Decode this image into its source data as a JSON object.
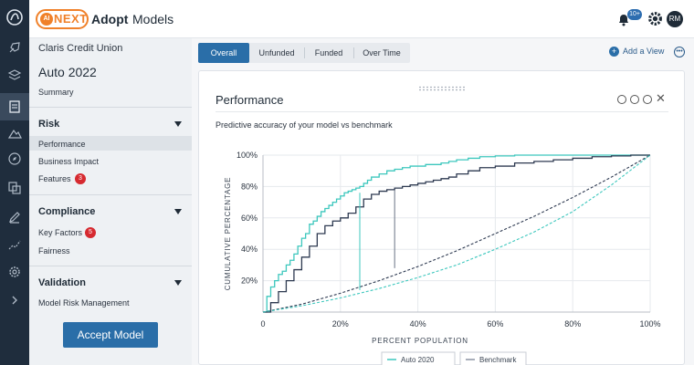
{
  "topbar": {
    "brand_ai": "AI",
    "brand_name": "NEXT",
    "app_title": "Adopt",
    "app_section": "Models",
    "notification_count": "10+",
    "user_initials": "RM"
  },
  "sidebar": {
    "org": "Claris Credit Union",
    "model": "Auto 2022",
    "summary": "Summary",
    "sections": {
      "risk": {
        "title": "Risk",
        "items": [
          "Performance",
          "Business Impact",
          "Features"
        ],
        "features_badge": "3"
      },
      "compliance": {
        "title": "Compliance",
        "items": [
          "Key Factors",
          "Fairness"
        ],
        "key_factors_badge": "5"
      },
      "validation": {
        "title": "Validation",
        "items": [
          "Model Risk Management"
        ]
      }
    },
    "accept_label": "Accept Model"
  },
  "main": {
    "tabs": [
      "Overall",
      "Unfunded",
      "Funded",
      "Over Time"
    ],
    "active_tab": "Overall",
    "add_view": "Add a View",
    "card": {
      "title": "Performance",
      "subtitle": "Predictive accuracy of your model vs benchmark"
    }
  },
  "colors": {
    "accent": "#2a6ea8",
    "teal_series": "#3cc7bd",
    "navy_series": "#2d3950",
    "badge": "#d62a30",
    "brand_orange": "#f0812a"
  },
  "chart_data": {
    "type": "line",
    "xlabel": "PERCENT POPULATION",
    "ylabel": "CUMULATIVE PERCENTAGE",
    "xlim": [
      0,
      100
    ],
    "ylim": [
      0,
      100
    ],
    "x_ticks": [
      "0",
      "20%",
      "40%",
      "60%",
      "80%",
      "100%"
    ],
    "y_ticks": [
      "20%",
      "40%",
      "60%",
      "80%",
      "100%"
    ],
    "grid": true,
    "legend": "bottom",
    "series": [
      {
        "name": "Auto 2020",
        "style": "solid",
        "color": "#3cc7bd",
        "x": [
          0,
          1,
          2,
          3,
          4,
          5,
          6,
          7,
          8,
          9,
          10,
          11,
          12,
          13,
          14,
          15,
          16,
          17,
          18,
          19,
          20,
          21,
          22,
          23,
          24,
          25,
          26,
          27,
          28,
          30,
          32,
          34,
          36,
          38,
          40,
          42,
          44,
          46,
          48,
          50,
          53,
          56,
          60,
          65,
          70,
          75,
          80,
          85,
          90,
          95,
          100
        ],
        "y": [
          0,
          10,
          16,
          20,
          24,
          26,
          30,
          33,
          37,
          42,
          47,
          50,
          56,
          58,
          61,
          64,
          66,
          68,
          70,
          72,
          74,
          76,
          77,
          78,
          79,
          80,
          82,
          84,
          86,
          88,
          90,
          91,
          92,
          93,
          93,
          94,
          94,
          95,
          96,
          97,
          98,
          99,
          99.5,
          100,
          100,
          100,
          100,
          100,
          100,
          100,
          100
        ]
      },
      {
        "name": "",
        "style": "solid",
        "color": "#2d3950",
        "x": [
          0,
          2,
          4,
          6,
          8,
          10,
          12,
          14,
          16,
          18,
          20,
          22,
          24,
          26,
          28,
          30,
          32,
          34,
          36,
          38,
          40,
          42,
          44,
          46,
          48,
          50,
          53,
          56,
          60,
          65,
          70,
          75,
          80,
          85,
          90,
          95,
          100
        ],
        "y": [
          0,
          6,
          13,
          20,
          27,
          35,
          42,
          50,
          55,
          58,
          60,
          63,
          67,
          72,
          75,
          77,
          78,
          79,
          80,
          81,
          82,
          83,
          84,
          85,
          86,
          88,
          90,
          92,
          93,
          95,
          96,
          97,
          98,
          99,
          99.5,
          100,
          100
        ]
      },
      {
        "name": "Benchmark",
        "style": "dashed",
        "color": "#2d3950",
        "x": [
          0,
          10,
          20,
          30,
          40,
          50,
          60,
          70,
          80,
          90,
          100
        ],
        "y": [
          0,
          5,
          12,
          20,
          29,
          39,
          50,
          61,
          73,
          86,
          100
        ]
      },
      {
        "name": "",
        "style": "dashed",
        "color": "#3cc7bd",
        "x": [
          0,
          10,
          20,
          30,
          40,
          50,
          60,
          70,
          80,
          90,
          100
        ],
        "y": [
          0,
          4,
          9,
          15,
          22,
          30,
          40,
          51,
          64,
          81,
          100
        ]
      }
    ],
    "annotations": [
      {
        "color": "#3cc7bd",
        "x": 25,
        "y_from": 14,
        "y_to": 76
      },
      {
        "color": "#6a7385",
        "x": 34,
        "y_from": 28,
        "y_to": 78
      }
    ]
  }
}
